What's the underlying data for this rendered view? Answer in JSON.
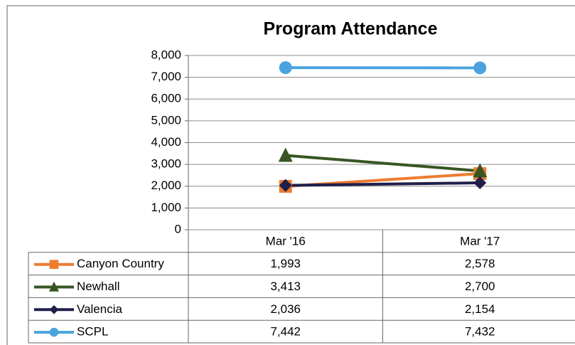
{
  "chart_data": {
    "type": "line",
    "title": "Program Attendance",
    "categories": [
      "Mar '16",
      "Mar '17"
    ],
    "series": [
      {
        "name": "Canyon Country",
        "color": "#ed7d31",
        "marker": "square",
        "values": [
          1993,
          2578
        ],
        "value_labels": [
          "1,993",
          "2,578"
        ]
      },
      {
        "name": "Newhall",
        "color": "#375623",
        "marker": "triangle",
        "values": [
          3413,
          2700
        ],
        "value_labels": [
          "3,413",
          "2,700"
        ]
      },
      {
        "name": "Valencia",
        "color": "#1f1f4a",
        "marker": "diamond",
        "values": [
          2036,
          2154
        ],
        "value_labels": [
          "2,036",
          "2,154"
        ]
      },
      {
        "name": "SCPL",
        "color": "#4aa3df",
        "marker": "circle",
        "values": [
          7442,
          7432
        ],
        "value_labels": [
          "7,442",
          "7,432"
        ]
      }
    ],
    "ylim": [
      0,
      8000
    ],
    "yticks": [
      0,
      {
        "value": 1000,
        "label": "1,000"
      },
      {
        "value": 2000,
        "label": "2,000"
      },
      {
        "value": 3000,
        "label": "3,000"
      },
      {
        "value": 4000,
        "label": "4,000"
      },
      {
        "value": 5000,
        "label": "5,000"
      },
      {
        "value": 6000,
        "label": "6,000"
      },
      {
        "value": 7000,
        "label": "7,000"
      },
      {
        "value": 8000,
        "label": "8,000"
      }
    ],
    "grid": true
  }
}
